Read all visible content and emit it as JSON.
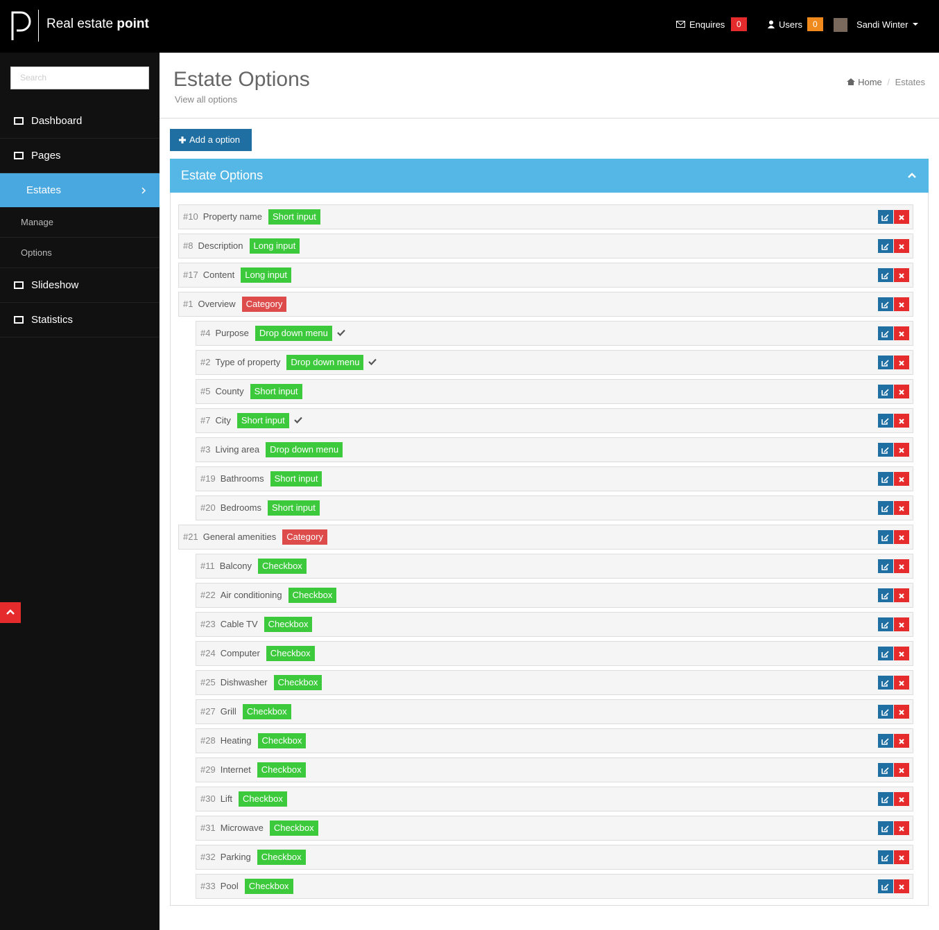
{
  "header": {
    "brand_light": "Real estate",
    "brand_bold": "point",
    "enquires": {
      "label": "Enquires",
      "count": 0
    },
    "users": {
      "label": "Users",
      "count": 0
    },
    "user_name": "Sandi Winter"
  },
  "sidebar": {
    "search_placeholder": "Search",
    "menu": [
      "Dashboard",
      "Pages",
      "Estates"
    ],
    "submenu": [
      "Manage",
      "Options"
    ],
    "menu_after": [
      "Slideshow",
      "Statistics"
    ]
  },
  "page": {
    "title": "Estate Options",
    "subtitle": "View all options",
    "breadcrumb": [
      "Home",
      "Estates"
    ],
    "add_button": "Add a option",
    "panel_title": "Estate Options"
  },
  "options": [
    {
      "id": "#10",
      "name": "Property name",
      "type": "Short input",
      "level": 0,
      "checked": false,
      "color": "#3cc93c"
    },
    {
      "id": "#8",
      "name": "Description",
      "type": "Long input",
      "level": 0,
      "checked": false,
      "color": "#3cc93c"
    },
    {
      "id": "#17",
      "name": "Content",
      "type": "Long input",
      "level": 0,
      "checked": false,
      "color": "#3cc93c"
    },
    {
      "id": "#1",
      "name": "Overview",
      "type": "Category",
      "level": 0,
      "checked": false,
      "color": "#dd4b4b"
    },
    {
      "id": "#4",
      "name": "Purpose",
      "type": "Drop down menu",
      "level": 1,
      "checked": true,
      "color": "#3cc93c"
    },
    {
      "id": "#2",
      "name": "Type of property",
      "type": "Drop down menu",
      "level": 1,
      "checked": true,
      "color": "#3cc93c"
    },
    {
      "id": "#5",
      "name": "County",
      "type": "Short input",
      "level": 1,
      "checked": false,
      "color": "#3cc93c"
    },
    {
      "id": "#7",
      "name": "City",
      "type": "Short input",
      "level": 1,
      "checked": true,
      "color": "#3cc93c"
    },
    {
      "id": "#3",
      "name": "Living area",
      "type": "Drop down menu",
      "level": 1,
      "checked": false,
      "color": "#3cc93c"
    },
    {
      "id": "#19",
      "name": "Bathrooms",
      "type": "Short input",
      "level": 1,
      "checked": false,
      "color": "#3cc93c"
    },
    {
      "id": "#20",
      "name": "Bedrooms",
      "type": "Short input",
      "level": 1,
      "checked": false,
      "color": "#3cc93c"
    },
    {
      "id": "#21",
      "name": "General amenities",
      "type": "Category",
      "level": 0,
      "checked": false,
      "color": "#dd4b4b"
    },
    {
      "id": "#11",
      "name": "Balcony",
      "type": "Checkbox",
      "level": 1,
      "checked": false,
      "color": "#3cc93c"
    },
    {
      "id": "#22",
      "name": "Air conditioning",
      "type": "Checkbox",
      "level": 1,
      "checked": false,
      "color": "#3cc93c"
    },
    {
      "id": "#23",
      "name": "Cable TV",
      "type": "Checkbox",
      "level": 1,
      "checked": false,
      "color": "#3cc93c"
    },
    {
      "id": "#24",
      "name": "Computer",
      "type": "Checkbox",
      "level": 1,
      "checked": false,
      "color": "#3cc93c"
    },
    {
      "id": "#25",
      "name": "Dishwasher",
      "type": "Checkbox",
      "level": 1,
      "checked": false,
      "color": "#3cc93c"
    },
    {
      "id": "#27",
      "name": "Grill",
      "type": "Checkbox",
      "level": 1,
      "checked": false,
      "color": "#3cc93c"
    },
    {
      "id": "#28",
      "name": "Heating",
      "type": "Checkbox",
      "level": 1,
      "checked": false,
      "color": "#3cc93c"
    },
    {
      "id": "#29",
      "name": "Internet",
      "type": "Checkbox",
      "level": 1,
      "checked": false,
      "color": "#3cc93c"
    },
    {
      "id": "#30",
      "name": "Lift",
      "type": "Checkbox",
      "level": 1,
      "checked": false,
      "color": "#3cc93c"
    },
    {
      "id": "#31",
      "name": "Microwave",
      "type": "Checkbox",
      "level": 1,
      "checked": false,
      "color": "#3cc93c"
    },
    {
      "id": "#32",
      "name": "Parking",
      "type": "Checkbox",
      "level": 1,
      "checked": false,
      "color": "#3cc93c"
    },
    {
      "id": "#33",
      "name": "Pool",
      "type": "Checkbox",
      "level": 1,
      "checked": false,
      "color": "#3cc93c"
    }
  ]
}
